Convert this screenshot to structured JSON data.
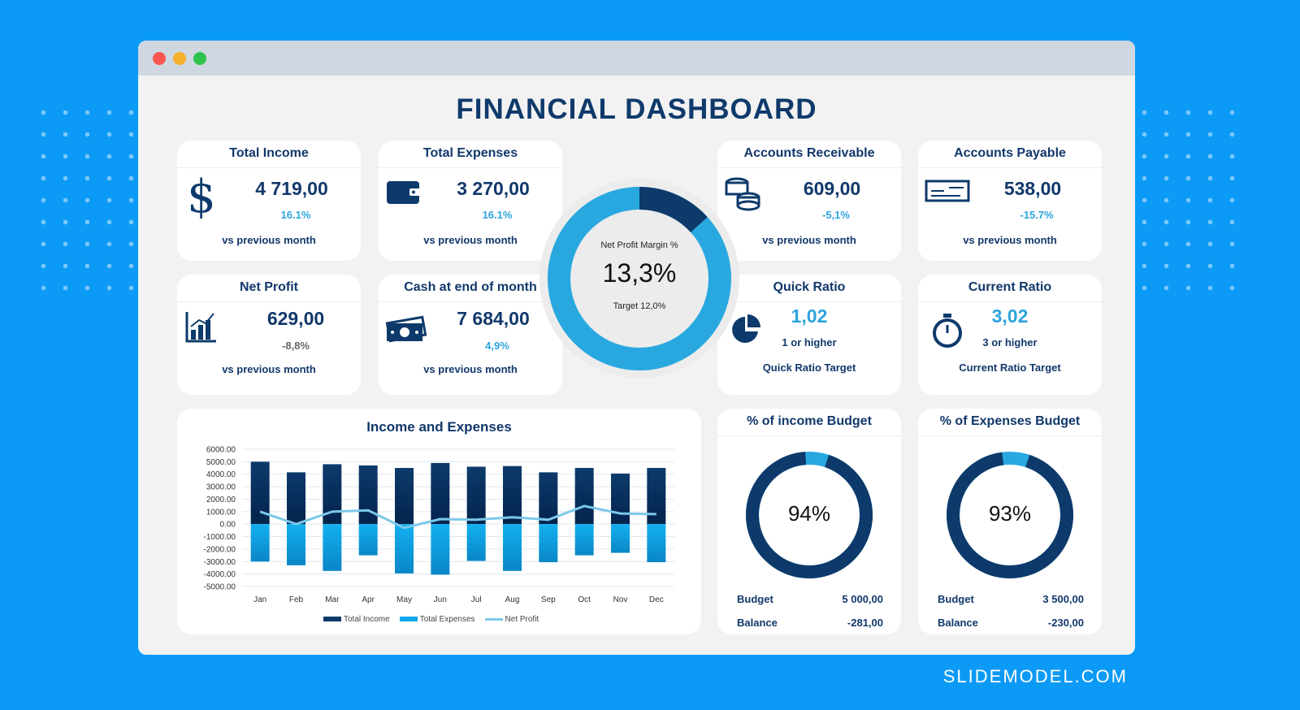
{
  "title": "FINANCIAL DASHBOARD",
  "brand": "SLIDEMODEL.COM",
  "kpis": [
    {
      "title": "Total Income",
      "value": "4 719,00",
      "change": "16.1%",
      "note": "vs previous month",
      "icon": "dollar-icon"
    },
    {
      "title": "Total Expenses",
      "value": "3 270,00",
      "change": "16.1%",
      "note": "vs previous month",
      "icon": "wallet-icon"
    },
    {
      "title": "Accounts Receivable",
      "value": "609,00",
      "change": "-5,1%",
      "note": "vs previous month",
      "icon": "coins-icon"
    },
    {
      "title": "Accounts Payable",
      "value": "538,00",
      "change": "-15.7%",
      "note": "vs previous month",
      "icon": "check-icon"
    },
    {
      "title": "Net Profit",
      "value": "629,00",
      "change": "-8,8%",
      "note": "vs previous month",
      "icon": "bar-chart-icon"
    },
    {
      "title": "Cash at end of month",
      "value": "7 684,00",
      "change": "4,9%",
      "note": "vs previous month",
      "icon": "cash-icon"
    }
  ],
  "ratios": [
    {
      "title": "Quick Ratio",
      "value": "1,02",
      "target": "1 or higher",
      "note": "Quick Ratio Target",
      "icon": "pie-icon"
    },
    {
      "title": "Current Ratio",
      "value": "3,02",
      "target": "3 or higher",
      "note": "Current Ratio Target",
      "icon": "stopwatch-icon"
    }
  ],
  "margin": {
    "label": "Net  Profit Margin %",
    "value": "13,3%",
    "target": "Target 12,0%",
    "fraction": 0.133
  },
  "budgets": [
    {
      "title": "% of income Budget",
      "value": "94%",
      "fraction": 0.94,
      "budget_label": "Budget",
      "budget": "5 000,00",
      "balance_label": "Balance",
      "balance": "-281,00"
    },
    {
      "title": "% of Expenses Budget",
      "value": "93%",
      "fraction": 0.93,
      "budget_label": "Budget",
      "budget": "3 500,00",
      "balance_label": "Balance",
      "balance": "-230,00"
    }
  ],
  "colors": {
    "dark": "#0d3a6b",
    "light": "#29a8e0",
    "accent": "#2da3dd"
  },
  "chart_data": {
    "type": "bar",
    "title": "Income and  Expenses",
    "categories": [
      "Jan",
      "Feb",
      "Mar",
      "Apr",
      "May",
      "Jun",
      "Jul",
      "Aug",
      "Sep",
      "Oct",
      "Nov",
      "Dec"
    ],
    "ylim": [
      -5000,
      6000
    ],
    "yticks": [
      "6000.00",
      "5000.00",
      "4000.00",
      "3000.00",
      "2000.00",
      "1000.00",
      "0.00",
      "-1000.00",
      "-2000.00",
      "-3000.00",
      "-4000.00",
      "-5000.00"
    ],
    "grid": true,
    "legend": "bottom",
    "series": [
      {
        "name": "Total Income",
        "type": "bar",
        "values": [
          5000,
          4150,
          4800,
          4700,
          4500,
          4900,
          4600,
          4650,
          4150,
          4500,
          4050,
          4500
        ]
      },
      {
        "name": "Total Expenses",
        "type": "bar",
        "values": [
          -3000,
          -3300,
          -3750,
          -2500,
          -3950,
          -4050,
          -2950,
          -3750,
          -3050,
          -2500,
          -2300,
          -3050
        ]
      },
      {
        "name": "Net Profit",
        "type": "line",
        "values": [
          1000,
          0,
          1000,
          1100,
          -300,
          400,
          350,
          550,
          350,
          1450,
          850,
          800
        ]
      }
    ]
  }
}
